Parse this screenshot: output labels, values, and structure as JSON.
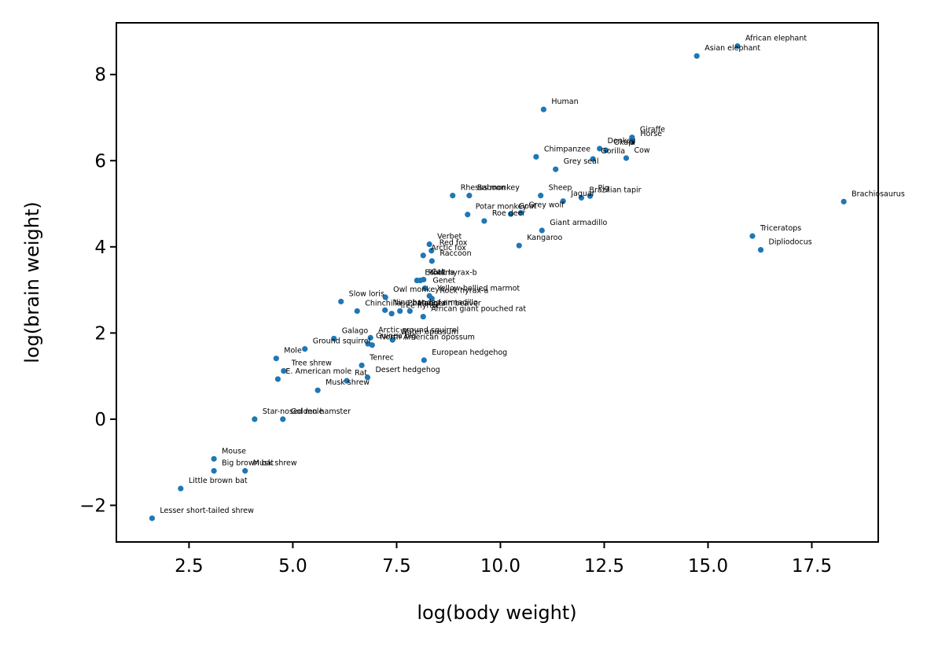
{
  "chart_data": {
    "type": "scatter",
    "title": "",
    "xlabel": "log(body weight)",
    "ylabel": "log(brain weight)",
    "xlim": [
      0.75,
      19.1
    ],
    "ylim": [
      -2.85,
      9.2
    ],
    "xticks": [
      2.5,
      5.0,
      7.5,
      10.0,
      12.5,
      15.0,
      17.5
    ],
    "xtick_labels": [
      "2.5",
      "5.0",
      "7.5",
      "10.0",
      "12.5",
      "15.0",
      "17.5"
    ],
    "yticks": [
      -2,
      0,
      2,
      4,
      6,
      8
    ],
    "ytick_labels": [
      "−2",
      "0",
      "2",
      "4",
      "6",
      "8"
    ],
    "grid": false,
    "point_color": "#1f77b4",
    "points": [
      {
        "label": "African elephant",
        "x": 15.71,
        "y": 8.66
      },
      {
        "label": "Asian elephant",
        "x": 14.73,
        "y": 8.43
      },
      {
        "label": "Human",
        "x": 11.04,
        "y": 7.19
      },
      {
        "label": "Giraffe",
        "x": 13.17,
        "y": 6.54
      },
      {
        "label": "Horse",
        "x": 13.18,
        "y": 6.44
      },
      {
        "label": "Okapi",
        "x": 12.54,
        "y": 6.24
      },
      {
        "label": "Donkey",
        "x": 12.39,
        "y": 6.28
      },
      {
        "label": "Gorilla",
        "x": 12.23,
        "y": 6.04
      },
      {
        "label": "Cow",
        "x": 13.03,
        "y": 6.06
      },
      {
        "label": "Chimpanzee",
        "x": 10.86,
        "y": 6.09
      },
      {
        "label": "Grey seal",
        "x": 11.33,
        "y": 5.8
      },
      {
        "label": "Brachiosaurus",
        "x": 18.27,
        "y": 5.05
      },
      {
        "label": "Rhesus monkey",
        "x": 8.85,
        "y": 5.19
      },
      {
        "label": "Baboon",
        "x": 9.25,
        "y": 5.19
      },
      {
        "label": "Sheep",
        "x": 10.97,
        "y": 5.19
      },
      {
        "label": "Pig",
        "x": 12.16,
        "y": 5.18
      },
      {
        "label": "Brazilian tapir",
        "x": 11.95,
        "y": 5.14
      },
      {
        "label": "Jaguar",
        "x": 11.51,
        "y": 5.06
      },
      {
        "label": "Grey wolf",
        "x": 10.49,
        "y": 4.79
      },
      {
        "label": "Goat",
        "x": 10.25,
        "y": 4.76
      },
      {
        "label": "Potar monkey",
        "x": 9.21,
        "y": 4.75
      },
      {
        "label": "Roe deer",
        "x": 9.61,
        "y": 4.6
      },
      {
        "label": "Giant armadillo",
        "x": 11.0,
        "y": 4.38
      },
      {
        "label": "Triceratops",
        "x": 16.07,
        "y": 4.25
      },
      {
        "label": "Dipliodocus",
        "x": 16.27,
        "y": 3.93
      },
      {
        "label": "Kangaroo",
        "x": 10.45,
        "y": 4.03
      },
      {
        "label": "Verbet",
        "x": 8.29,
        "y": 4.06
      },
      {
        "label": "Red fox",
        "x": 8.34,
        "y": 3.91
      },
      {
        "label": "Arctic fox",
        "x": 8.14,
        "y": 3.8
      },
      {
        "label": "Raccoon",
        "x": 8.35,
        "y": 3.67
      },
      {
        "label": "Cat",
        "x": 8.15,
        "y": 3.24
      },
      {
        "label": "Echidna",
        "x": 7.99,
        "y": 3.22
      },
      {
        "label": "Rock hyrax-b",
        "x": 8.07,
        "y": 3.22
      },
      {
        "label": "Genet",
        "x": 8.18,
        "y": 3.04
      },
      {
        "label": "Yellow-bellied marmot",
        "x": 8.29,
        "y": 2.86
      },
      {
        "label": "Owl monkey",
        "x": 7.23,
        "y": 2.83
      },
      {
        "label": "Rock hyrax-a",
        "x": 8.35,
        "y": 2.8
      },
      {
        "label": "Slow loris",
        "x": 6.16,
        "y": 2.73
      },
      {
        "label": "Nine-banded armadillo",
        "x": 7.22,
        "y": 2.53
      },
      {
        "label": "Phalanger",
        "x": 7.58,
        "y": 2.51
      },
      {
        "label": "Tree hyrax",
        "x": 7.38,
        "y": 2.45
      },
      {
        "label": "Mountain beaver",
        "x": 7.82,
        "y": 2.51
      },
      {
        "label": "Galago",
        "x": 5.99,
        "y": 1.87
      },
      {
        "label": "Chinchilla",
        "x": 6.55,
        "y": 2.51
      },
      {
        "label": "African giant pouched rat",
        "x": 8.14,
        "y": 2.38
      },
      {
        "label": "Arctic ground squirrel",
        "x": 6.87,
        "y": 1.89
      },
      {
        "label": "Guinea pig",
        "x": 6.81,
        "y": 1.75
      },
      {
        "label": "North American opossum",
        "x": 6.91,
        "y": 1.72
      },
      {
        "label": "Water opossum",
        "x": 7.4,
        "y": 1.84
      },
      {
        "label": "Ground squirrel",
        "x": 5.29,
        "y": 1.63
      },
      {
        "label": "European hedgehog",
        "x": 8.16,
        "y": 1.37
      },
      {
        "label": "Mole",
        "x": 4.6,
        "y": 1.41
      },
      {
        "label": "Tenrec",
        "x": 6.66,
        "y": 1.25
      },
      {
        "label": "Tree shrew",
        "x": 4.78,
        "y": 1.12
      },
      {
        "label": "Desert hedgehog",
        "x": 6.8,
        "y": 0.97
      },
      {
        "label": "Rat",
        "x": 6.3,
        "y": 0.89
      },
      {
        "label": "E. American mole",
        "x": 4.64,
        "y": 0.93
      },
      {
        "label": "Star-nosed mole",
        "x": 4.08,
        "y": 0.0
      },
      {
        "label": "Golden hamster",
        "x": 4.76,
        "y": 0.0
      },
      {
        "label": "Musk shrew",
        "x": 5.6,
        "y": 0.67
      },
      {
        "label": "Mouse",
        "x": 3.1,
        "y": -0.92
      },
      {
        "label": "Big brown bat",
        "x": 3.1,
        "y": -1.2
      },
      {
        "label": "Musk shrew",
        "x": 3.85,
        "y": -1.2
      },
      {
        "label": "Little brown bat",
        "x": 2.3,
        "y": -1.61
      },
      {
        "label": "Lesser short-tailed shrew",
        "x": 1.61,
        "y": -2.3
      }
    ]
  }
}
